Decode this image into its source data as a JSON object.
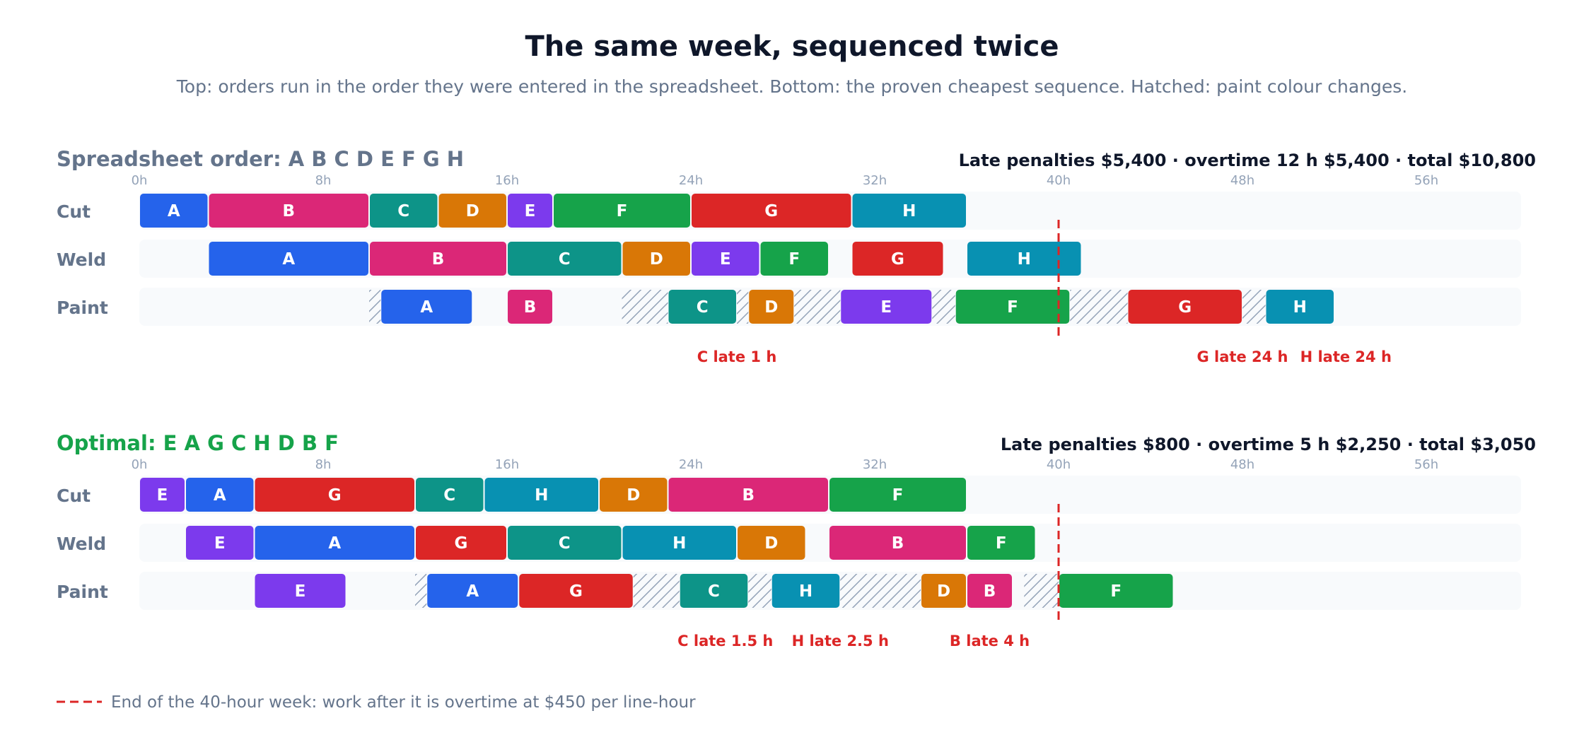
{
  "title": "The same week, sequenced twice",
  "subtitle": "Top: orders run in the order they were entered in the spreadsheet. Bottom: the proven cheapest sequence. Hatched: paint colour changes.",
  "legend_text": "End of the 40-hour week: work after it is overtime at $450 per line-hour",
  "colors": {
    "A": "#2563eb",
    "B": "#db2777",
    "C": "#0d9488",
    "D": "#d97706",
    "E": "#7c3aed",
    "F": "#16a34a",
    "G": "#dc2626",
    "H": "#0891b2",
    "deadline": "#dc2626",
    "late_text": "#dc2626",
    "spreadsheet_title": "#64748b",
    "optimal_title": "#16a34a",
    "track_bg": "#f8fafc",
    "hatch": "#94a3b8"
  },
  "chart_data": [
    {
      "type": "gantt",
      "title": "Spreadsheet order: A B C D E F G H",
      "summary": "Late penalties $5,400 · overtime 12 h $5,400 · total $10,800",
      "x_unit": "hours",
      "xlim": [
        0,
        60
      ],
      "ticks": [
        "0h",
        "8h",
        "16h",
        "24h",
        "32h",
        "40h",
        "48h",
        "56h"
      ],
      "tick_values": [
        0,
        8,
        16,
        24,
        32,
        40,
        48,
        56
      ],
      "deadline_hours": 40,
      "rows": [
        {
          "name": "Cut",
          "tasks": [
            {
              "order": "A",
              "start": 0,
              "end": 3
            },
            {
              "order": "B",
              "start": 3,
              "end": 10
            },
            {
              "order": "C",
              "start": 10,
              "end": 13
            },
            {
              "order": "D",
              "start": 13,
              "end": 16
            },
            {
              "order": "E",
              "start": 16,
              "end": 18
            },
            {
              "order": "F",
              "start": 18,
              "end": 24
            },
            {
              "order": "G",
              "start": 24,
              "end": 31
            },
            {
              "order": "H",
              "start": 31,
              "end": 36
            }
          ]
        },
        {
          "name": "Weld",
          "tasks": [
            {
              "order": "A",
              "start": 3,
              "end": 10
            },
            {
              "order": "B",
              "start": 10,
              "end": 16
            },
            {
              "order": "C",
              "start": 16,
              "end": 21
            },
            {
              "order": "D",
              "start": 21,
              "end": 24
            },
            {
              "order": "E",
              "start": 24,
              "end": 27
            },
            {
              "order": "F",
              "start": 27,
              "end": 30
            },
            {
              "order": "G",
              "start": 31,
              "end": 35
            },
            {
              "order": "H",
              "start": 36,
              "end": 41
            }
          ]
        },
        {
          "name": "Paint",
          "changeovers": [
            {
              "start": 10,
              "end": 10.5
            },
            {
              "start": 21,
              "end": 23
            },
            {
              "start": 26,
              "end": 26.5
            },
            {
              "start": 28.5,
              "end": 30.5
            },
            {
              "start": 34.5,
              "end": 35.5
            },
            {
              "start": 40.5,
              "end": 43
            },
            {
              "start": 48,
              "end": 49
            }
          ],
          "tasks": [
            {
              "order": "A",
              "start": 10.5,
              "end": 14.5
            },
            {
              "order": "B",
              "start": 16,
              "end": 18
            },
            {
              "order": "C",
              "start": 23,
              "end": 26
            },
            {
              "order": "D",
              "start": 26.5,
              "end": 28.5
            },
            {
              "order": "E",
              "start": 30.5,
              "end": 34.5
            },
            {
              "order": "F",
              "start": 35.5,
              "end": 40.5
            },
            {
              "order": "G",
              "start": 43,
              "end": 48
            },
            {
              "order": "H",
              "start": 49,
              "end": 52
            }
          ]
        }
      ],
      "late_notes": [
        {
          "text": "C late 1 h",
          "x": 26
        },
        {
          "text": "G late 24 h",
          "x": 48
        },
        {
          "text": "H late 24 h",
          "x": 52.5
        }
      ]
    },
    {
      "type": "gantt",
      "title": "Optimal: E A G C H D B F",
      "summary": "Late penalties $800 · overtime 5 h $2,250 · total $3,050",
      "x_unit": "hours",
      "xlim": [
        0,
        60
      ],
      "ticks": [
        "0h",
        "8h",
        "16h",
        "24h",
        "32h",
        "40h",
        "48h",
        "56h"
      ],
      "tick_values": [
        0,
        8,
        16,
        24,
        32,
        40,
        48,
        56
      ],
      "deadline_hours": 40,
      "rows": [
        {
          "name": "Cut",
          "tasks": [
            {
              "order": "E",
              "start": 0,
              "end": 2
            },
            {
              "order": "A",
              "start": 2,
              "end": 5
            },
            {
              "order": "G",
              "start": 5,
              "end": 12
            },
            {
              "order": "C",
              "start": 12,
              "end": 15
            },
            {
              "order": "H",
              "start": 15,
              "end": 20
            },
            {
              "order": "D",
              "start": 20,
              "end": 23
            },
            {
              "order": "B",
              "start": 23,
              "end": 30
            },
            {
              "order": "F",
              "start": 30,
              "end": 36
            }
          ]
        },
        {
          "name": "Weld",
          "tasks": [
            {
              "order": "E",
              "start": 2,
              "end": 5
            },
            {
              "order": "A",
              "start": 5,
              "end": 12
            },
            {
              "order": "G",
              "start": 12,
              "end": 16
            },
            {
              "order": "C",
              "start": 16,
              "end": 21
            },
            {
              "order": "H",
              "start": 21,
              "end": 26
            },
            {
              "order": "D",
              "start": 26,
              "end": 29
            },
            {
              "order": "B",
              "start": 30,
              "end": 36
            },
            {
              "order": "F",
              "start": 36,
              "end": 39
            }
          ]
        },
        {
          "name": "Paint",
          "changeovers": [
            {
              "start": 12,
              "end": 12.5
            },
            {
              "start": 21.5,
              "end": 23.5
            },
            {
              "start": 26.5,
              "end": 27.5
            },
            {
              "start": 30.5,
              "end": 34
            },
            {
              "start": 38.5,
              "end": 40
            }
          ],
          "tasks": [
            {
              "order": "E",
              "start": 5,
              "end": 9
            },
            {
              "order": "A",
              "start": 12.5,
              "end": 16.5
            },
            {
              "order": "G",
              "start": 16.5,
              "end": 21.5
            },
            {
              "order": "C",
              "start": 23.5,
              "end": 26.5
            },
            {
              "order": "H",
              "start": 27.5,
              "end": 30.5
            },
            {
              "order": "D",
              "start": 34,
              "end": 36
            },
            {
              "order": "B",
              "start": 36,
              "end": 38
            },
            {
              "order": "F",
              "start": 40,
              "end": 45
            }
          ]
        }
      ],
      "late_notes": [
        {
          "text": "C late 1.5 h",
          "x": 25.5
        },
        {
          "text": "H late 2.5 h",
          "x": 30.5
        },
        {
          "text": "B late 4 h",
          "x": 37
        }
      ]
    }
  ]
}
